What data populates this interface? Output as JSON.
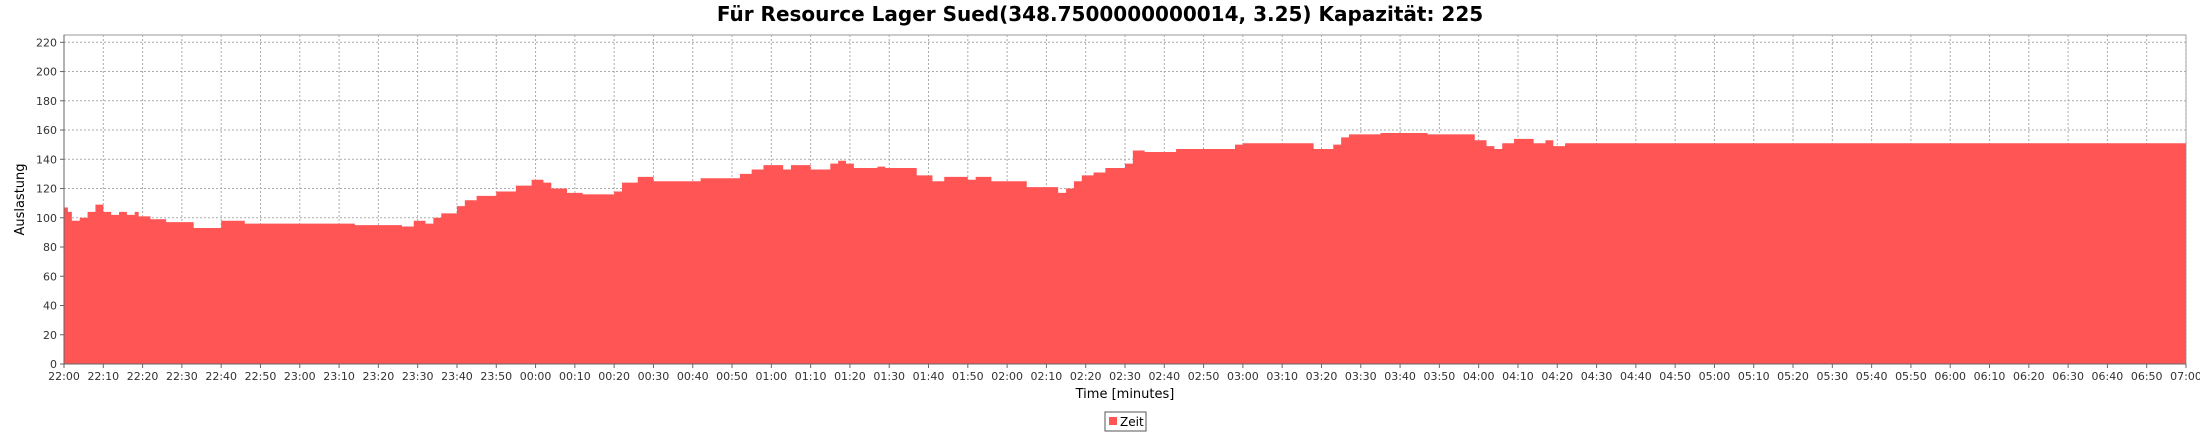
{
  "chart_data": {
    "type": "area",
    "title": "Für Resource Lager Sued(348.7500000000014, 3.25) Kapazität: 225",
    "xlabel": "Time [minutes]",
    "ylabel": "Auslastung",
    "ylim": [
      0,
      225
    ],
    "yticks": [
      "0",
      "20",
      "40",
      "60",
      "80",
      "100",
      "120",
      "140",
      "160",
      "180",
      "200",
      "220"
    ],
    "xticks": [
      "22:00",
      "22:10",
      "22:20",
      "22:30",
      "22:40",
      "22:50",
      "23:00",
      "23:10",
      "23:20",
      "23:30",
      "23:40",
      "23:50",
      "00:00",
      "00:10",
      "00:20",
      "00:30",
      "00:40",
      "00:50",
      "01:00",
      "01:10",
      "01:20",
      "01:30",
      "01:40",
      "01:50",
      "02:00",
      "02:10",
      "02:20",
      "02:30",
      "02:40",
      "02:50",
      "03:00",
      "03:10",
      "03:20",
      "03:30",
      "03:40",
      "03:50",
      "04:00",
      "04:10",
      "04:20",
      "04:30",
      "04:40",
      "04:50",
      "05:00",
      "05:10",
      "05:20",
      "05:30",
      "05:40",
      "05:50",
      "06:00",
      "06:10",
      "06:20",
      "06:30",
      "06:40",
      "06:50",
      "07:00"
    ],
    "grid": true,
    "legend_position": "bottom-center",
    "series": [
      {
        "name": "Zeit",
        "color": "#ff5555",
        "step": true,
        "points": [
          [
            "22:00",
            107
          ],
          [
            "22:01",
            104
          ],
          [
            "22:02",
            98
          ],
          [
            "22:04",
            100
          ],
          [
            "22:06",
            104
          ],
          [
            "22:08",
            109
          ],
          [
            "22:10",
            104
          ],
          [
            "22:12",
            102
          ],
          [
            "22:14",
            104
          ],
          [
            "22:16",
            102
          ],
          [
            "22:18",
            104
          ],
          [
            "22:19",
            101
          ],
          [
            "22:22",
            99
          ],
          [
            "22:26",
            97
          ],
          [
            "22:33",
            93
          ],
          [
            "22:40",
            98
          ],
          [
            "22:46",
            96
          ],
          [
            "23:00",
            96
          ],
          [
            "23:14",
            95
          ],
          [
            "23:26",
            94
          ],
          [
            "23:29",
            98
          ],
          [
            "23:32",
            96
          ],
          [
            "23:34",
            100
          ],
          [
            "23:36",
            103
          ],
          [
            "23:40",
            108
          ],
          [
            "23:42",
            112
          ],
          [
            "23:45",
            115
          ],
          [
            "23:50",
            118
          ],
          [
            "23:55",
            122
          ],
          [
            "23:59",
            126
          ],
          [
            "00:02",
            124
          ],
          [
            "00:04",
            120
          ],
          [
            "00:08",
            117
          ],
          [
            "00:12",
            116
          ],
          [
            "00:20",
            118
          ],
          [
            "00:22",
            124
          ],
          [
            "00:26",
            128
          ],
          [
            "00:30",
            125
          ],
          [
            "00:42",
            127
          ],
          [
            "00:52",
            130
          ],
          [
            "00:55",
            133
          ],
          [
            "00:58",
            136
          ],
          [
            "01:03",
            133
          ],
          [
            "01:05",
            136
          ],
          [
            "01:10",
            133
          ],
          [
            "01:15",
            137
          ],
          [
            "01:17",
            139
          ],
          [
            "01:19",
            137
          ],
          [
            "01:21",
            134
          ],
          [
            "01:27",
            135
          ],
          [
            "01:29",
            134
          ],
          [
            "01:37",
            129
          ],
          [
            "01:41",
            125
          ],
          [
            "01:44",
            128
          ],
          [
            "01:50",
            126
          ],
          [
            "01:52",
            128
          ],
          [
            "01:56",
            125
          ],
          [
            "02:05",
            121
          ],
          [
            "02:13",
            117
          ],
          [
            "02:15",
            120
          ],
          [
            "02:17",
            125
          ],
          [
            "02:19",
            129
          ],
          [
            "02:22",
            131
          ],
          [
            "02:25",
            134
          ],
          [
            "02:30",
            137
          ],
          [
            "02:32",
            146
          ],
          [
            "02:35",
            145
          ],
          [
            "02:43",
            147
          ],
          [
            "02:58",
            150
          ],
          [
            "03:00",
            151
          ],
          [
            "03:18",
            147
          ],
          [
            "03:23",
            150
          ],
          [
            "03:25",
            155
          ],
          [
            "03:27",
            157
          ],
          [
            "03:35",
            158
          ],
          [
            "03:47",
            157
          ],
          [
            "03:59",
            153
          ],
          [
            "04:02",
            149
          ],
          [
            "04:04",
            147
          ],
          [
            "04:06",
            151
          ],
          [
            "04:09",
            154
          ],
          [
            "04:14",
            151
          ],
          [
            "04:17",
            153
          ],
          [
            "04:19",
            149
          ],
          [
            "04:22",
            151
          ],
          [
            "05:00",
            151
          ],
          [
            "06:00",
            151
          ],
          [
            "07:00",
            151
          ]
        ]
      }
    ]
  },
  "legend": {
    "items": [
      {
        "label": "Zeit",
        "color": "#ff5555"
      }
    ]
  }
}
